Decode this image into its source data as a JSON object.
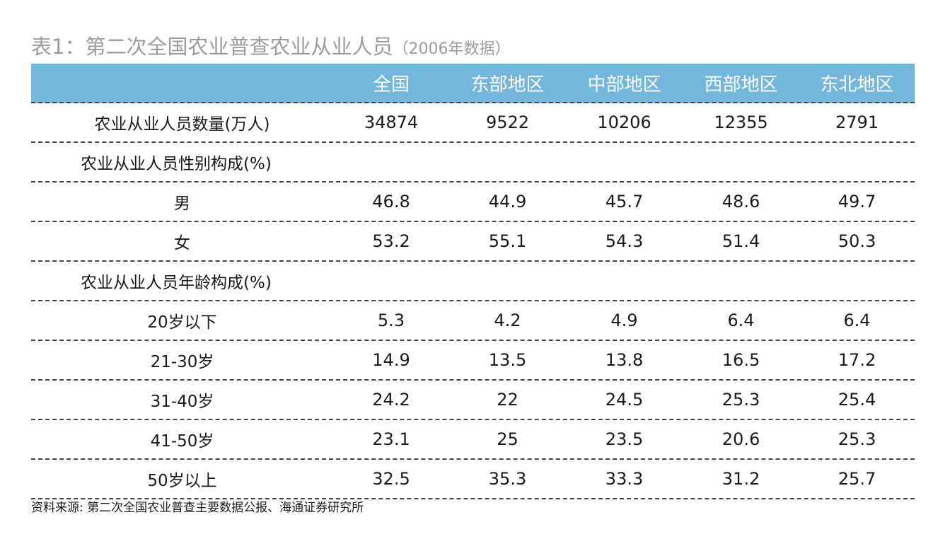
{
  "title": {
    "main": "表1：第二次全国农业普查农业从业人员",
    "sub": "（2006年数据）"
  },
  "table": {
    "headers": [
      "",
      "全国",
      "东部地区",
      "中部地区",
      "西部地区",
      "东北地区"
    ],
    "rows": [
      {
        "label": "农业从业人员数量(万人)",
        "values": [
          "34874",
          "9522",
          "10206",
          "12355",
          "2791"
        ]
      },
      {
        "section": "农业从业人员性别构成(%)"
      },
      {
        "label": "男",
        "values": [
          "46.8",
          "44.9",
          "45.7",
          "48.6",
          "49.7"
        ]
      },
      {
        "label": "女",
        "values": [
          "53.2",
          "55.1",
          "54.3",
          "51.4",
          "50.3"
        ]
      },
      {
        "section": "农业从业人员年龄构成(%)"
      },
      {
        "label": "20岁以下",
        "values": [
          "5.3",
          "4.2",
          "4.9",
          "6.4",
          "6.4"
        ]
      },
      {
        "label": "21-30岁",
        "values": [
          "14.9",
          "13.5",
          "13.8",
          "16.5",
          "17.2"
        ]
      },
      {
        "label": "31-40岁",
        "values": [
          "24.2",
          "22",
          "24.5",
          "25.3",
          "25.4"
        ]
      },
      {
        "label": "41-50岁",
        "values": [
          "23.1",
          "25",
          "23.5",
          "20.6",
          "25.3"
        ]
      },
      {
        "label": "50岁以上",
        "values": [
          "32.5",
          "35.3",
          "33.3",
          "31.2",
          "25.7"
        ]
      }
    ]
  },
  "source": "资料来源: 第二次全国农业普查主要数据公报、海通证券研究所",
  "colors": {
    "header_bg": "#74b7dd",
    "header_text": "#ffffff",
    "title_text": "#9c9c9c"
  }
}
